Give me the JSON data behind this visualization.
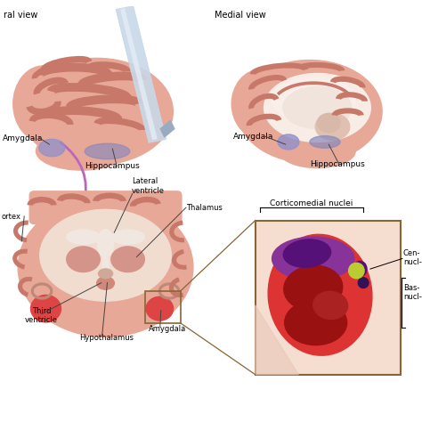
{
  "bg_color": "#ffffff",
  "lateral_label": "ral view",
  "medial_label": "Medial view",
  "brain_color": "#e8a898",
  "brain_light": "#f0c0b0",
  "brain_dark": "#c87868",
  "brain_inner": "#f5e0d8",
  "corpus_color": "#f8ede5",
  "amygdala_purple": "#9090cc",
  "hippocampus_purple": "#8888bb",
  "arrow_color": "#bb66bb",
  "coronal_brain": "#e8a898",
  "coronal_wm": "#f0ddd0",
  "coronal_wm2": "#eeddd0",
  "coronal_vent": "#f0e8e0",
  "coronal_thal": "#d49888",
  "coronal_amyg": "#dd4444",
  "coronal_hypo": "#d08878",
  "box_bg": "#f5ddd0",
  "box_shadow": "#e8c8b8",
  "amyg_outer": "#dd3333",
  "amyg_dark": "#991111",
  "amyg_purple": "#883399",
  "amyg_dpurple": "#551177",
  "amyg_yellow": "#bbcc33",
  "line_color": "#444444",
  "labels": {
    "lat_view": "ral view",
    "med_view": "Medial view",
    "amygdala": "Amygdala",
    "hippocampus": "Hippocampus",
    "lat_vent": "Lateral\nventricle",
    "thalamus": "Thalamus",
    "cortex": "ortex",
    "third_vent": "Third\nventricle",
    "hypothalamus": "Hypothalamus",
    "amygdala_b": "Amygdala",
    "corticomedial": "Corticomedial nuclei",
    "central": "Cen-\nnucl-",
    "basal": "Bas-\nnucl-"
  },
  "figsize": [
    4.74,
    4.74
  ],
  "dpi": 100
}
